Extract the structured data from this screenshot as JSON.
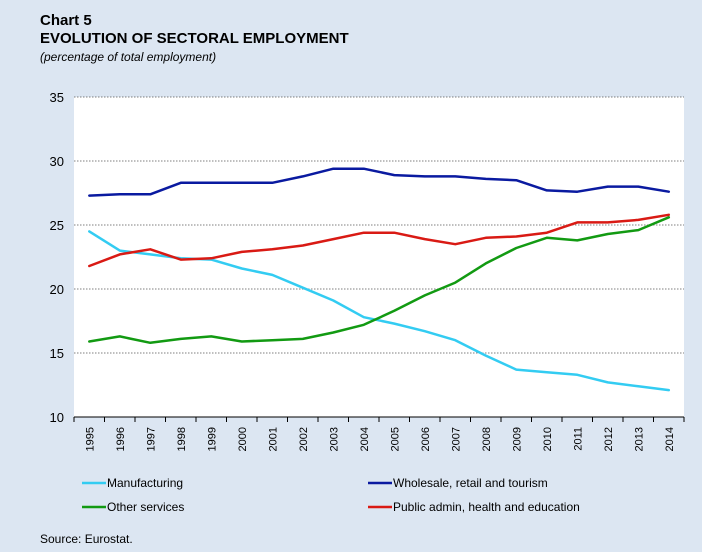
{
  "header": {
    "chart_number": "Chart 5",
    "title": "EVOLUTION OF SECTORAL EMPLOYMENT",
    "subtitle": "(percentage of total employment)"
  },
  "footer": {
    "source": "Source: Eurostat."
  },
  "chart_data": {
    "type": "line",
    "x": [
      "1995",
      "1996",
      "1997",
      "1998",
      "1999",
      "2000",
      "2001",
      "2002",
      "2003",
      "2004",
      "2005",
      "2006",
      "2007",
      "2008",
      "2009",
      "2010",
      "2011",
      "2012",
      "2013",
      "2014"
    ],
    "y_ticks": [
      "35",
      "30",
      "25",
      "20",
      "15",
      "10"
    ],
    "ylim": [
      10,
      35
    ],
    "grid": "horizontal dotted",
    "legend_position": "bottom",
    "series": [
      {
        "name": "Manufacturing",
        "color": "#33ccf2",
        "values": [
          24.5,
          23.0,
          22.7,
          22.4,
          22.3,
          21.6,
          21.1,
          20.1,
          19.1,
          17.8,
          17.3,
          16.7,
          16.0,
          14.8,
          13.7,
          13.5,
          13.3,
          12.7,
          12.4,
          12.1
        ]
      },
      {
        "name": "Wholesale, retail and tourism",
        "color": "#0a1aa0",
        "values": [
          27.3,
          27.4,
          27.4,
          28.3,
          28.3,
          28.3,
          28.3,
          28.8,
          29.4,
          29.4,
          28.9,
          28.8,
          28.8,
          28.6,
          28.5,
          27.7,
          27.6,
          28.0,
          28.0,
          27.6
        ]
      },
      {
        "name": "Other services",
        "color": "#129a12",
        "values": [
          15.9,
          16.3,
          15.8,
          16.1,
          16.3,
          15.9,
          16.0,
          16.1,
          16.6,
          17.2,
          18.3,
          19.5,
          20.5,
          22.0,
          23.2,
          24.0,
          23.8,
          24.3,
          24.6,
          25.6
        ]
      },
      {
        "name": "Public admin, health and education",
        "color": "#d91a14",
        "values": [
          21.8,
          22.7,
          23.1,
          22.3,
          22.4,
          22.9,
          23.1,
          23.4,
          23.9,
          24.4,
          24.4,
          23.9,
          23.5,
          24.0,
          24.1,
          24.4,
          25.2,
          25.2,
          25.4,
          25.8
        ]
      }
    ]
  }
}
